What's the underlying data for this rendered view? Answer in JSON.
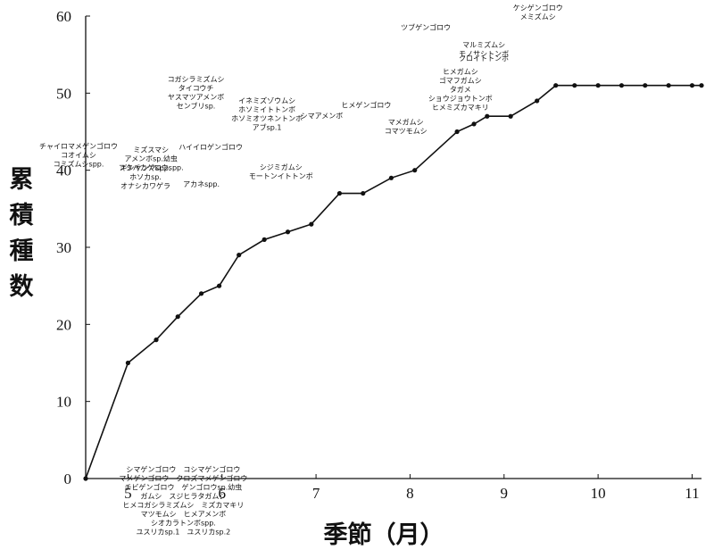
{
  "chart_data": {
    "type": "line",
    "title": "",
    "xlabel": "季節（月）",
    "ylabel": "累積種数",
    "xlim": [
      4.55,
      11.1
    ],
    "ylim": [
      0,
      60
    ],
    "xticks": [
      "5",
      "6",
      "7",
      "8",
      "9",
      "10",
      "11"
    ],
    "yticks": [
      "0",
      "10",
      "20",
      "30",
      "40",
      "50",
      "60"
    ],
    "grid": false,
    "series": [
      {
        "points": [
          [
            4.55,
            0
          ],
          [
            5.0,
            15
          ],
          [
            5.3,
            18
          ],
          [
            5.53,
            21
          ],
          [
            5.78,
            24
          ],
          [
            5.97,
            25
          ],
          [
            6.18,
            29
          ],
          [
            6.45,
            31
          ],
          [
            6.7,
            32
          ],
          [
            6.95,
            33
          ],
          [
            7.25,
            37
          ],
          [
            7.5,
            37
          ],
          [
            7.8,
            39
          ],
          [
            8.05,
            40
          ],
          [
            8.5,
            45
          ],
          [
            8.68,
            46
          ],
          [
            8.82,
            47
          ],
          [
            9.07,
            47
          ],
          [
            9.35,
            49
          ],
          [
            9.55,
            51
          ],
          [
            9.75,
            51
          ],
          [
            10.0,
            51
          ],
          [
            10.25,
            51
          ],
          [
            10.5,
            51
          ],
          [
            10.75,
            51
          ],
          [
            11.0,
            51
          ],
          [
            11.1,
            51
          ]
        ]
      }
    ],
    "annotations": [
      {
        "x": 5.0,
        "y": 15,
        "lines": [
          "シマゲンゴロウ　コシマゲンゴロウ",
          "マメゲンゴロウ　クロズマメゲンゴロウ",
          "チビゲンゴロウ　ゲンゴロウsp.幼虫",
          "ガムシ　スジヒラタガムシ",
          "ヒメコガシラミズムシ　ミズカマキリ",
          "マツモムシ　ヒメアメンボ",
          "シオカラトンボspp.",
          "ユスリカsp.1　ユスリカsp.2"
        ]
      },
      {
        "x": 4.55,
        "y": 21,
        "lines": [
          "チャイロマメゲンゴロウ",
          "コオイムシ",
          "コミズムシspp."
        ]
      },
      {
        "x": 5.53,
        "y": 21,
        "lines": [
          "ミズスマシ",
          "アメンボsp.幼虫",
          "フタバカゲロウspp."
        ]
      },
      {
        "x": 5.3,
        "y": 24,
        "lines": [
          "ギンヤンマspp.",
          "ホソカsp.",
          "オナシカワゲラ"
        ]
      },
      {
        "x": 5.97,
        "y": 25,
        "lines": [
          "アカネspp."
        ]
      },
      {
        "x": 5.78,
        "y": 29,
        "lines": [
          "コガシラミズムシ",
          "タイコウチ",
          "ヤスマツアメンボ",
          "センブリsp."
        ]
      },
      {
        "x": 6.45,
        "y": 31,
        "lines": [
          "ハイイロゲンゴロウ"
        ]
      },
      {
        "x": 6.95,
        "y": 33,
        "lines": [
          "シジミガムシ",
          "モートンイトトンボ"
        ]
      },
      {
        "x": 7.0,
        "y": 37,
        "lines": [
          "イネミズゾウムシ",
          "ホソミイトトンボ",
          "ホソミオツネントンボ",
          "アブsp.1"
        ]
      },
      {
        "x": 7.25,
        "y": 37,
        "lines": [
          "シマアメンボ"
        ]
      },
      {
        "x": 7.8,
        "y": 39,
        "lines": [
          "ヒメゲンゴロウ"
        ]
      },
      {
        "x": 8.05,
        "y": 40,
        "lines": [
          "マメガムシ",
          "コマツモムシ"
        ]
      },
      {
        "x": 8.5,
        "y": 45,
        "lines": [
          "ツブゲンゴロウ"
        ]
      },
      {
        "x": 8.82,
        "y": 47,
        "lines": [
          "ヒメガムシ",
          "ゴマフガムシ",
          "タガメ",
          "ショウジョウトンボ",
          "ヒメミズカマキリ"
        ]
      },
      {
        "x": 9.07,
        "y": 47,
        "lines": [
          "クロイトトンボ"
        ]
      },
      {
        "x": 9.07,
        "y": 49,
        "lines": [
          "マルミズムシ",
          "モノサシトンボ"
        ]
      },
      {
        "x": 9.55,
        "y": 51,
        "lines": [
          "ケシゲンゴロウ",
          "メミズムシ"
        ]
      }
    ]
  }
}
